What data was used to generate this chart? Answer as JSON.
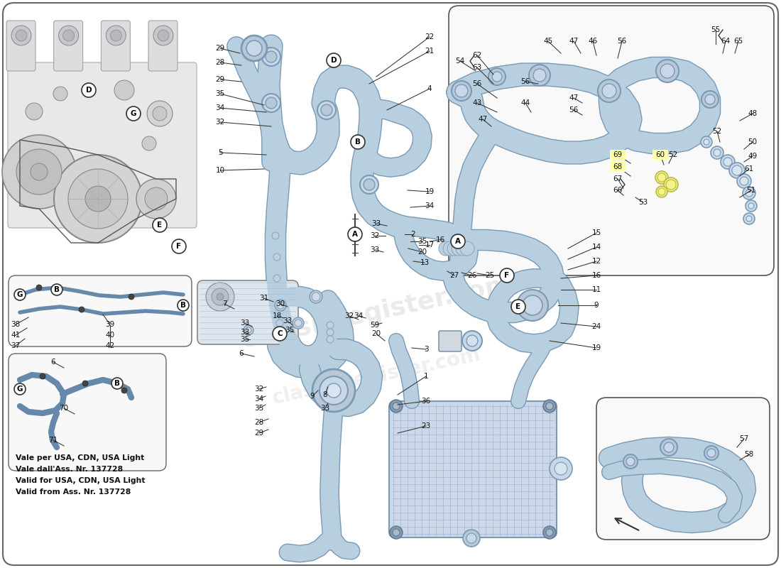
{
  "bg": "#ffffff",
  "hose_fill": "#b8cfe0",
  "hose_edge": "#7a9ab5",
  "hose_dark": "#8aaac0",
  "box_ec": "#555555",
  "box_fc": "#f9f9f9",
  "watermark": "classicregister.com",
  "note1": "Vale per USA, CDN, USA Light",
  "note2": "Vale dall'Ass. Nr. 137728",
  "note3": "Valid for USA, CDN, USA Light",
  "note4": "Valid from Ass. Nr. 137728",
  "fig_w": 11.0,
  "fig_h": 8.0,
  "dpi": 100
}
